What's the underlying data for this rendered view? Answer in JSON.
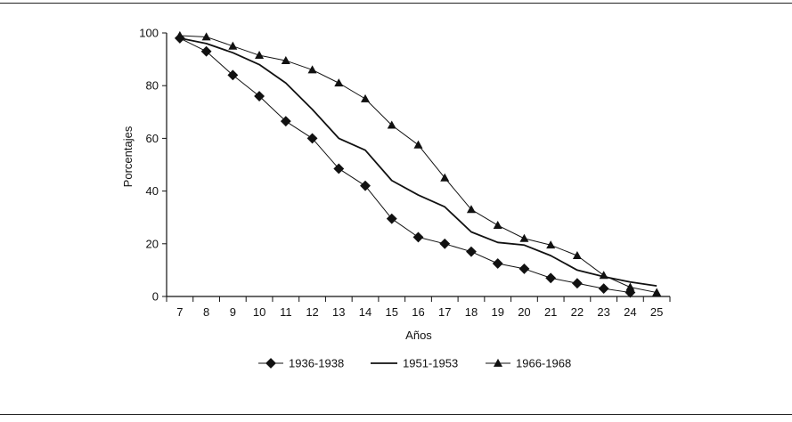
{
  "chart_data": {
    "type": "line",
    "title": "",
    "xlabel": "Años",
    "ylabel": "Porcentajes",
    "x": [
      7,
      8,
      9,
      10,
      11,
      12,
      13,
      14,
      15,
      16,
      17,
      18,
      19,
      20,
      21,
      22,
      23,
      24,
      25
    ],
    "xlim": [
      6.5,
      25.5
    ],
    "ylim": [
      0,
      100
    ],
    "yticks": [
      0,
      20,
      40,
      60,
      80,
      100
    ],
    "grid": false,
    "legend_position": "bottom",
    "series": [
      {
        "name": "1936-1938",
        "marker": "diamond",
        "values": [
          98,
          93,
          84,
          76,
          66.5,
          60,
          48.5,
          42,
          29.5,
          22.5,
          20,
          17,
          12.5,
          10.5,
          7,
          5,
          3,
          1.5,
          null
        ]
      },
      {
        "name": "1951-1953",
        "marker": "none",
        "values": [
          98,
          96,
          92.5,
          88,
          81,
          71,
          60,
          55.5,
          44,
          38.5,
          34,
          24.5,
          20.5,
          19.5,
          15.5,
          10,
          7.5,
          5.5,
          4
        ]
      },
      {
        "name": "1966-1968",
        "marker": "triangle",
        "values": [
          99,
          98.5,
          95,
          91.5,
          89.5,
          86,
          81,
          75,
          65,
          57.5,
          45,
          33,
          27,
          22,
          19.5,
          15.5,
          8,
          3.5,
          1.5
        ]
      }
    ]
  }
}
